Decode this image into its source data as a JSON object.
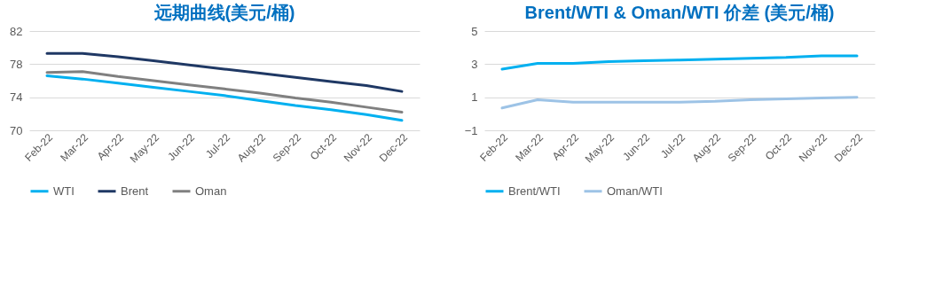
{
  "chart_data": [
    {
      "type": "line",
      "title": "远期曲线(美元/桶)",
      "categories": [
        "Feb-22",
        "Mar-22",
        "Apr-22",
        "May-22",
        "Jun-22",
        "Jul-22",
        "Aug-22",
        "Sep-22",
        "Oct-22",
        "Nov-22",
        "Dec-22"
      ],
      "series": [
        {
          "name": "WTI",
          "color": "#00b0f0",
          "values": [
            76.6,
            76.2,
            75.7,
            75.2,
            74.7,
            74.2,
            73.6,
            73.0,
            72.5,
            71.9,
            71.2
          ]
        },
        {
          "name": "Brent",
          "color": "#1f3864",
          "values": [
            79.3,
            79.3,
            78.9,
            78.4,
            77.9,
            77.4,
            76.9,
            76.4,
            75.9,
            75.4,
            74.7
          ]
        },
        {
          "name": "Oman",
          "color": "#808080",
          "values": [
            77.0,
            77.1,
            76.5,
            76.0,
            75.5,
            75.0,
            74.5,
            73.9,
            73.4,
            72.8,
            72.2
          ]
        }
      ],
      "ylim": [
        70,
        82
      ],
      "yticks": [
        70,
        74,
        78,
        82
      ],
      "grid": "y",
      "legend": "bottom",
      "marker": "none",
      "line_style": "solid"
    },
    {
      "type": "line",
      "title": "Brent/WTI & Oman/WTI 价差 (美元/桶)",
      "categories": [
        "Feb-22",
        "Mar-22",
        "Apr-22",
        "May-22",
        "Jun-22",
        "Jul-22",
        "Aug-22",
        "Sep-22",
        "Oct-22",
        "Nov-22",
        "Dec-22"
      ],
      "series": [
        {
          "name": "Brent/WTI",
          "color": "#00b0f0",
          "values": [
            2.7,
            3.05,
            3.05,
            3.15,
            3.2,
            3.25,
            3.3,
            3.35,
            3.4,
            3.5,
            3.5
          ]
        },
        {
          "name": "Oman/WTI",
          "color": "#9dc3e6",
          "values": [
            0.35,
            0.85,
            0.7,
            0.7,
            0.7,
            0.7,
            0.75,
            0.85,
            0.9,
            0.95,
            1.0
          ]
        }
      ],
      "ylim": [
        -1,
        5
      ],
      "yticks": [
        -1,
        1,
        3,
        5
      ],
      "grid": "y",
      "legend": "bottom",
      "marker": "none",
      "line_style": "solid"
    }
  ]
}
